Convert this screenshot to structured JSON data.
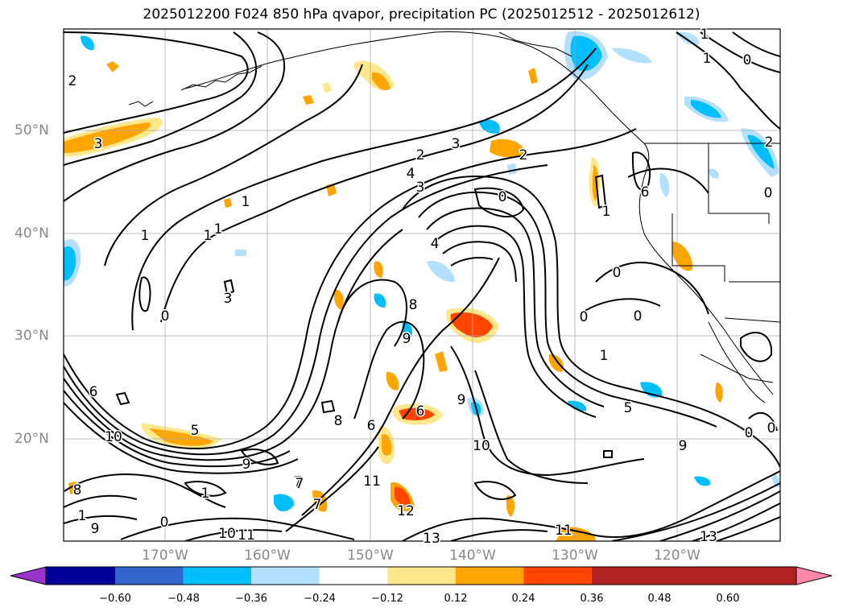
{
  "title": "2025012200 F024 850 hPa qvapor, precipitation PC (2025012512 - 2025012612)",
  "lat_labels": [
    "50°N",
    "40°N",
    "30°N",
    "20°N"
  ],
  "lon_labels": [
    "170°W",
    "160°W",
    "150°W",
    "140°W",
    "130°W",
    "120°W"
  ],
  "colorbar": {
    "ticks": [
      "−0.60",
      "−0.48",
      "−0.36",
      "−0.24",
      "−0.12",
      "0.12",
      "0.24",
      "0.36",
      "0.48",
      "0.60"
    ],
    "colors": [
      "#9933cc",
      "#000099",
      "#3366cc",
      "#00bfff",
      "#b3e0ff",
      "#ffffff",
      "#ffe88c",
      "#ffa500",
      "#ff4500",
      "#b22222",
      "#ff88aa"
    ]
  },
  "contour_labels": [
    "2",
    "3",
    "1",
    "0",
    "1",
    "1",
    "1",
    "3",
    "0",
    "0",
    "2",
    "4",
    "3",
    "3",
    "2",
    "4",
    "1",
    "0",
    "8",
    "9",
    "9",
    "6",
    "10",
    "5",
    "9",
    "6",
    "7",
    "8",
    "9",
    "7",
    "10",
    "11",
    "7",
    "1",
    "6",
    "8",
    "11",
    "12",
    "13",
    "11",
    "13",
    "10",
    "9",
    "0",
    "1",
    "5",
    "0",
    "0",
    "2",
    "1",
    "0",
    "1",
    "6",
    "0",
    "0",
    "1"
  ]
}
